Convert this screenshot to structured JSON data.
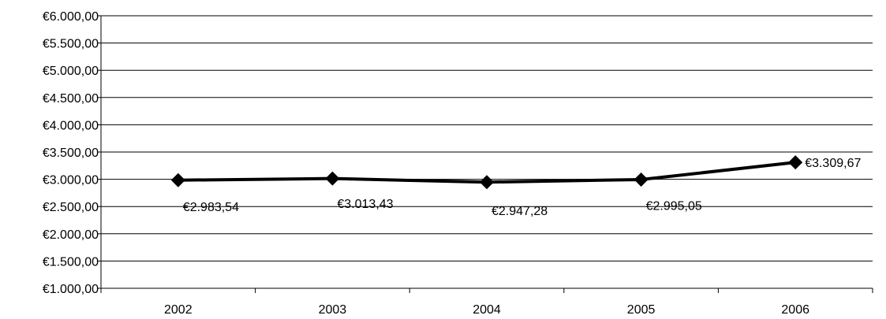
{
  "chart_data": {
    "type": "line",
    "title": "",
    "xlabel": "",
    "ylabel": "",
    "categories": [
      "2002",
      "2003",
      "2004",
      "2005",
      "2006"
    ],
    "series": [
      {
        "values": [
          2983.54,
          3013.43,
          2947.28,
          2995.05,
          3309.67
        ],
        "labels": [
          "€2.983,54",
          "€3.013,43",
          "€2.947,28",
          "€2.995,05",
          "€3.309,67"
        ],
        "color": "#000000",
        "marker": "diamond"
      }
    ],
    "ylim": [
      1000,
      6000
    ],
    "y_ticks": [
      1000,
      1500,
      2000,
      2500,
      3000,
      3500,
      4000,
      4500,
      5000,
      5500,
      6000
    ],
    "y_tick_labels": [
      "€1.000,00",
      "€1.500,00",
      "€2.000,00",
      "€2.500,00",
      "€3.000,00",
      "€3.500,00",
      "€4.000,00",
      "€4.500,00",
      "€5.000,00",
      "€5.500,00",
      "€6.000,00"
    ],
    "grid": true,
    "legend": "none"
  }
}
